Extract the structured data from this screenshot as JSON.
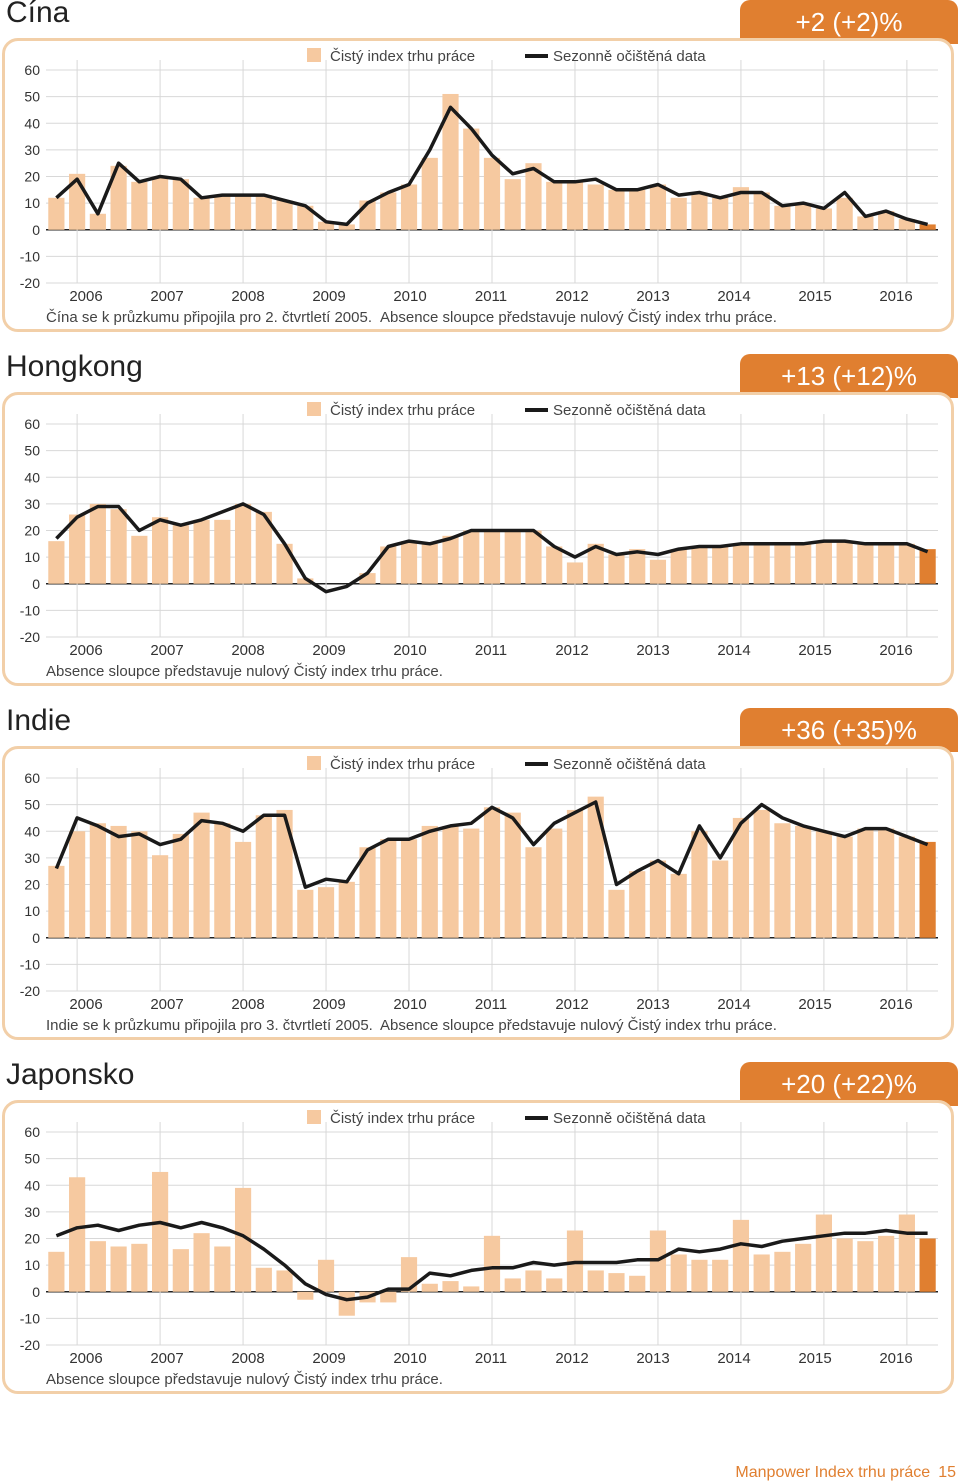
{
  "colors": {
    "bar": "#f6c9a0",
    "bar_last": "#e07f30",
    "line": "#1a1a1a",
    "badge": "#e07f30",
    "frame": "#f2cfa8"
  },
  "legend": {
    "bars": "Čistý index trhu práce",
    "line": "Sezonně očištěná data"
  },
  "footer": {
    "title": "Manpower Index trhu práce",
    "page": "15"
  },
  "chart_data": [
    {
      "type": "bar+line",
      "title": "Čína",
      "badge": "+2 (+2)%",
      "yticks": [
        "60",
        "50",
        "40",
        "30",
        "20",
        "10",
        "0",
        "-10",
        "-20"
      ],
      "ylim": [
        -20,
        60
      ],
      "years": [
        "2006",
        "2007",
        "2008",
        "2009",
        "2010",
        "2011",
        "2012",
        "2013",
        "2014",
        "2015",
        "2016"
      ],
      "notes": [
        "Čína se k průzkumu připojila pro 2. čtvrtletí 2005.",
        "Absence sloupce představuje nulový Čistý index trhu práce."
      ],
      "bars": [
        12,
        21,
        6,
        24,
        18,
        20,
        19,
        12,
        13,
        13,
        13,
        11,
        9,
        3,
        2,
        11,
        14,
        17,
        27,
        51,
        38,
        27,
        19,
        25,
        18,
        18,
        17,
        15,
        15,
        17,
        12,
        14,
        12,
        16,
        14,
        9,
        10,
        8,
        12,
        5,
        7,
        4,
        2
      ],
      "line": [
        12,
        19,
        6,
        25,
        18,
        20,
        19,
        12,
        13,
        13,
        13,
        11,
        9,
        3,
        2,
        10,
        14,
        17,
        30,
        46,
        38,
        28,
        21,
        23,
        18,
        18,
        19,
        15,
        15,
        17,
        13,
        14,
        12,
        14,
        14,
        9,
        10,
        8,
        14,
        5,
        7,
        4,
        2
      ]
    },
    {
      "type": "bar+line",
      "title": "Hongkong",
      "badge": "+13 (+12)%",
      "yticks": [
        "60",
        "50",
        "40",
        "30",
        "20",
        "10",
        "0",
        "-10",
        "-20"
      ],
      "ylim": [
        -20,
        60
      ],
      "years": [
        "2006",
        "2007",
        "2008",
        "2009",
        "2010",
        "2011",
        "2012",
        "2013",
        "2014",
        "2015",
        "2016"
      ],
      "notes": [
        "Absence sloupce představuje nulový Čistý index trhu práce."
      ],
      "bars": [
        16,
        26,
        30,
        28,
        18,
        25,
        22,
        24,
        24,
        30,
        27,
        15,
        2,
        0,
        0,
        4,
        14,
        16,
        15,
        18,
        20,
        20,
        20,
        20,
        14,
        8,
        15,
        11,
        13,
        9,
        13,
        14,
        14,
        15,
        15,
        15,
        15,
        16,
        16,
        15,
        15,
        15,
        13
      ],
      "line": [
        17,
        25,
        29,
        29,
        20,
        24,
        22,
        24,
        27,
        30,
        26,
        15,
        2,
        -3,
        -1,
        4,
        14,
        16,
        15,
        17,
        20,
        20,
        20,
        20,
        14,
        10,
        14,
        11,
        12,
        11,
        13,
        14,
        14,
        15,
        15,
        15,
        15,
        16,
        16,
        15,
        15,
        15,
        12
      ]
    },
    {
      "type": "bar+line",
      "title": "Indie",
      "badge": "+36 (+35)%",
      "yticks": [
        "60",
        "50",
        "40",
        "30",
        "20",
        "10",
        "0",
        "-10",
        "-20"
      ],
      "ylim": [
        -20,
        60
      ],
      "years": [
        "2006",
        "2007",
        "2008",
        "2009",
        "2010",
        "2011",
        "2012",
        "2013",
        "2014",
        "2015",
        "2016"
      ],
      "notes": [
        "Indie se k průzkumu připojila pro 3. čtvrtletí 2005.",
        "Absence sloupce představuje nulový Čistý index trhu práce."
      ],
      "bars": [
        27,
        40,
        43,
        42,
        40,
        31,
        39,
        47,
        43,
        36,
        46,
        48,
        18,
        19,
        21,
        34,
        37,
        37,
        42,
        42,
        41,
        49,
        47,
        34,
        41,
        48,
        53,
        18,
        25,
        29,
        24,
        40,
        29,
        45,
        48,
        43,
        42,
        40,
        38,
        41,
        41,
        38,
        36
      ],
      "line": [
        26,
        45,
        42,
        38,
        39,
        35,
        37,
        44,
        43,
        40,
        46,
        46,
        19,
        22,
        21,
        33,
        37,
        37,
        40,
        42,
        43,
        49,
        45,
        35,
        43,
        47,
        51,
        20,
        25,
        29,
        24,
        42,
        30,
        43,
        50,
        45,
        42,
        40,
        38,
        41,
        41,
        38,
        35
      ]
    },
    {
      "type": "bar+line",
      "title": "Japonsko",
      "badge": "+20 (+22)%",
      "yticks": [
        "60",
        "50",
        "40",
        "30",
        "20",
        "10",
        "0",
        "-10",
        "-20"
      ],
      "ylim": [
        -20,
        60
      ],
      "years": [
        "2006",
        "2007",
        "2008",
        "2009",
        "2010",
        "2011",
        "2012",
        "2013",
        "2014",
        "2015",
        "2016"
      ],
      "notes": [
        "Absence sloupce představuje nulový Čistý index trhu práce."
      ],
      "bars": [
        15,
        43,
        19,
        17,
        18,
        45,
        16,
        22,
        17,
        39,
        9,
        8,
        -3,
        12,
        -9,
        -4,
        -4,
        13,
        3,
        4,
        2,
        21,
        5,
        8,
        5,
        23,
        8,
        7,
        6,
        23,
        14,
        12,
        12,
        27,
        14,
        15,
        18,
        29,
        20,
        19,
        21,
        29,
        20
      ],
      "line": [
        21,
        24,
        25,
        23,
        25,
        26,
        24,
        26,
        24,
        21,
        16,
        10,
        3,
        -1,
        -3,
        -2,
        1,
        1,
        7,
        6,
        8,
        9,
        9,
        11,
        10,
        11,
        11,
        11,
        12,
        12,
        16,
        15,
        16,
        18,
        17,
        19,
        20,
        21,
        22,
        22,
        23,
        22,
        22
      ]
    }
  ]
}
